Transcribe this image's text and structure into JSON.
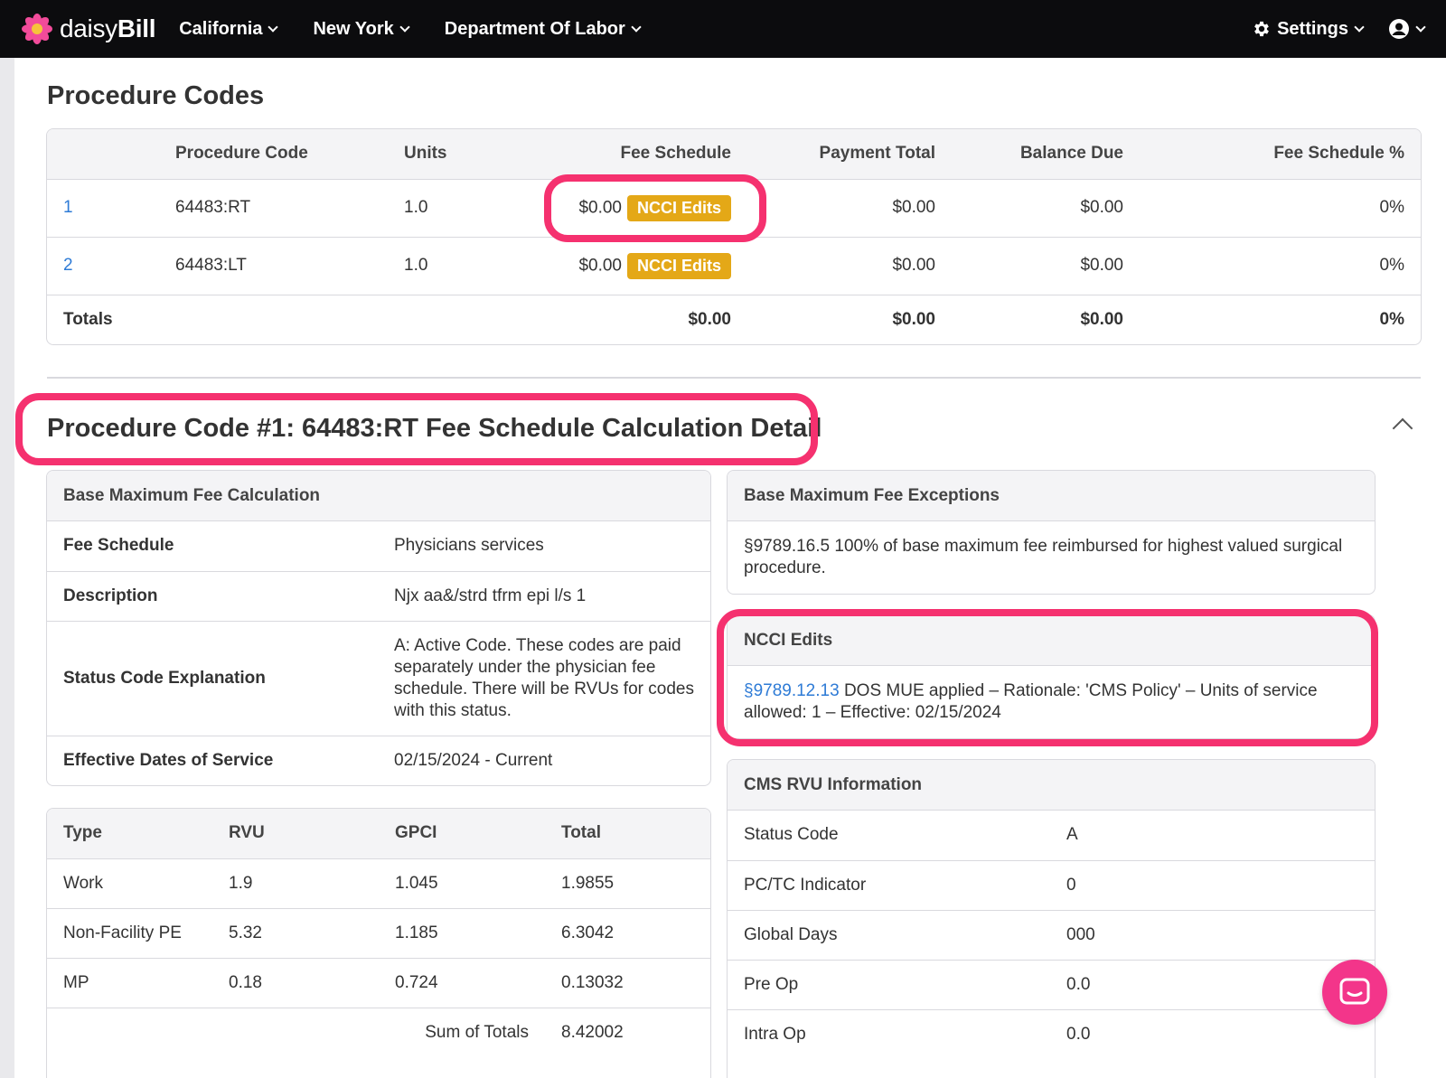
{
  "nav": {
    "brand": {
      "light": "daisy",
      "bold": "Bill"
    },
    "items": [
      "California",
      "New York",
      "Department Of Labor"
    ],
    "settings": "Settings"
  },
  "page_title": "Procedure Codes",
  "procedure_table": {
    "headers": [
      "",
      "Procedure Code",
      "Units",
      "Fee Schedule",
      "Payment Total",
      "Balance Due",
      "Fee Schedule %"
    ],
    "rows": [
      {
        "num": "1",
        "code": "64483:RT",
        "units": "1.0",
        "fee": "$0.00",
        "badge": "NCCI Edits",
        "payment": "$0.00",
        "balance": "$0.00",
        "pct": "0%"
      },
      {
        "num": "2",
        "code": "64483:LT",
        "units": "1.0",
        "fee": "$0.00",
        "badge": "NCCI Edits",
        "payment": "$0.00",
        "balance": "$0.00",
        "pct": "0%"
      }
    ],
    "totals": {
      "label": "Totals",
      "fee": "$0.00",
      "payment": "$0.00",
      "balance": "$0.00",
      "pct": "0%"
    }
  },
  "detail": {
    "title_bold": "Procedure Code #1: 64483:RT",
    "title_rest": "Fee Schedule Calculation Detail"
  },
  "base_calc": {
    "heading": "Base Maximum Fee Calculation",
    "rows": [
      {
        "k": "Fee Schedule",
        "v": "Physicians services"
      },
      {
        "k": "Description",
        "v": "Njx aa&/strd tfrm epi l/s 1"
      },
      {
        "k": "Status Code Explanation",
        "v": "A: Active Code. These codes are paid separately under the physician fee schedule. There will be RVUs for codes with this status."
      },
      {
        "k": "Effective Dates of Service",
        "v": "02/15/2024 - Current"
      }
    ]
  },
  "rvu_table": {
    "headers": [
      "Type",
      "RVU",
      "GPCI",
      "Total"
    ],
    "rows": [
      [
        "Work",
        "1.9",
        "1.045",
        "1.9855"
      ],
      [
        "Non-Facility PE",
        "5.32",
        "1.185",
        "6.3042"
      ],
      [
        "MP",
        "0.18",
        "0.724",
        "0.13032"
      ]
    ],
    "sum_label": "Sum of Totals",
    "sum_value": "8.42002"
  },
  "exceptions": {
    "heading": "Base Maximum Fee Exceptions",
    "text": "§9789.16.5 100% of base maximum fee reimbursed for highest valued surgical procedure."
  },
  "ncci": {
    "heading": "NCCI Edits",
    "link": "§9789.12.13",
    "text": " DOS MUE applied – Rationale: 'CMS Policy' – Units of service allowed: 1 – Effective: 02/15/2024"
  },
  "cms_rvu": {
    "heading": "CMS RVU Information",
    "rows": [
      {
        "k": "Status Code",
        "v": "A"
      },
      {
        "k": "PC/TC Indicator",
        "v": "0"
      },
      {
        "k": "Global Days",
        "v": "000"
      },
      {
        "k": "Pre Op",
        "v": "0.0"
      },
      {
        "k": "Intra Op",
        "v": "0.0"
      }
    ]
  },
  "colors": {
    "accent_link": "#2e7bd6",
    "badge": "#e4a817",
    "highlight": "#f5316f",
    "chat": "#f3358a",
    "nav": "#0c0c0e"
  },
  "icons": [
    "daisy-logo-icon",
    "chevron-down-icon",
    "gear-icon",
    "user-circle-icon",
    "chevron-up-icon",
    "chat-icon"
  ]
}
